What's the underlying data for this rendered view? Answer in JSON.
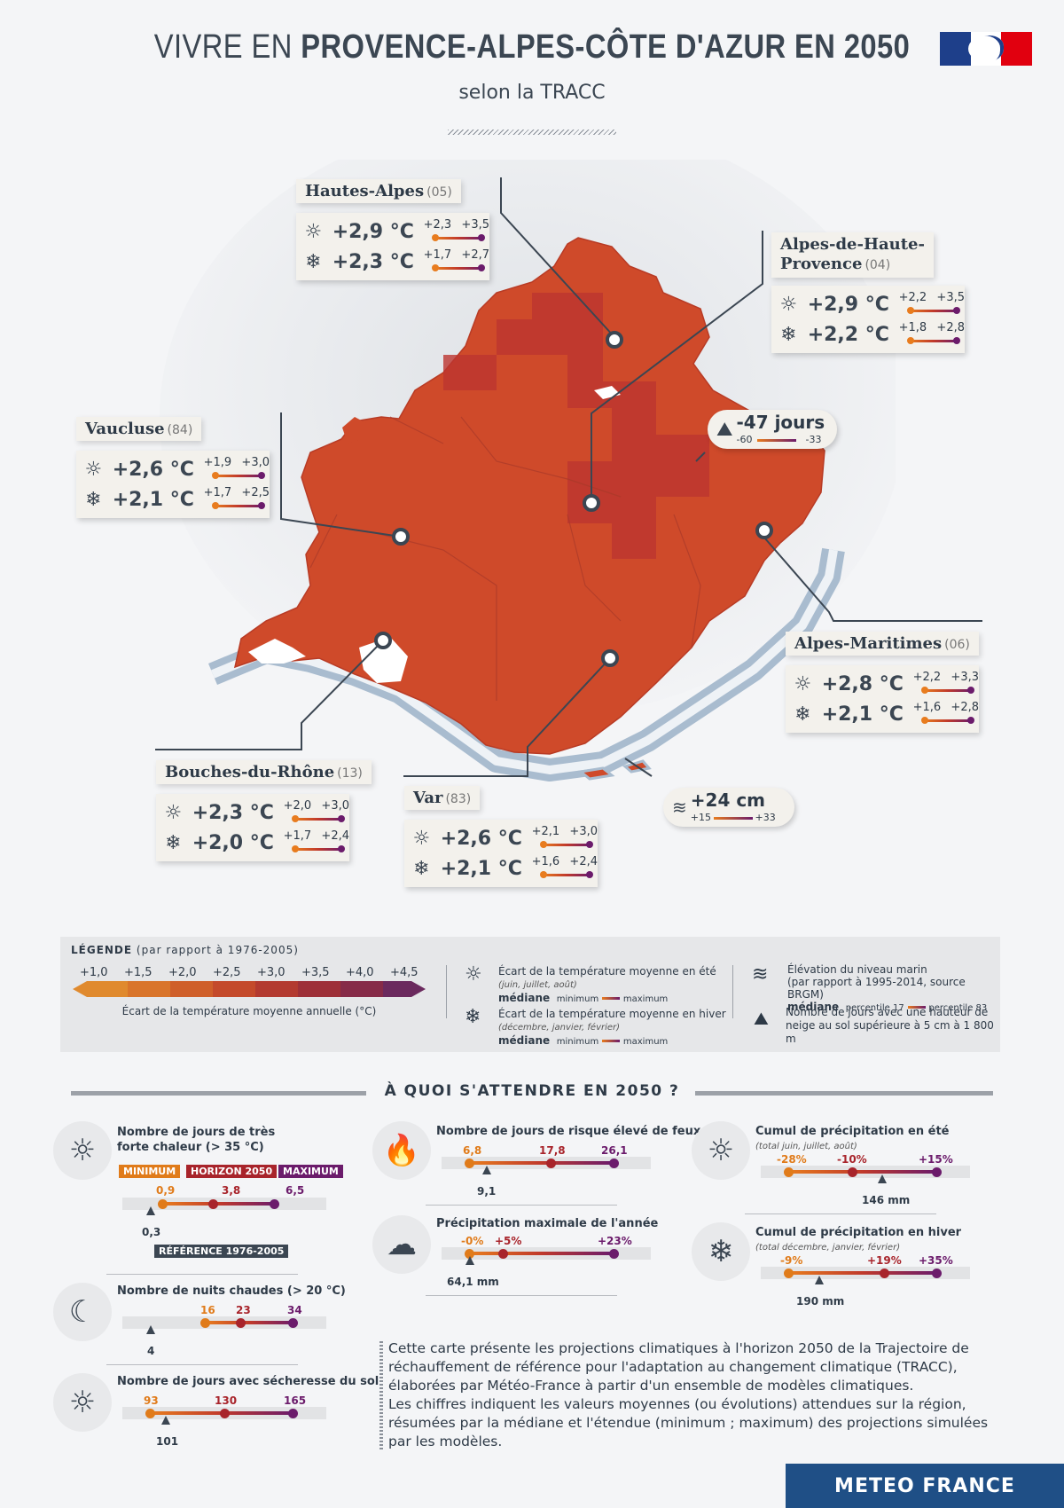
{
  "header": {
    "title_light": "VIVRE EN ",
    "title_bold": "PROVENCE-ALPES-CÔTE D'AZUR EN 2050",
    "subtitle": "selon la TRACC"
  },
  "regions": [
    {
      "name": "Hautes-Alpes",
      "code": "(05)",
      "summer": "+2,9 °C",
      "summer_min": "+2,3",
      "summer_max": "+3,5",
      "winter": "+2,3 °C",
      "winter_min": "+1,7",
      "winter_max": "+2,7"
    },
    {
      "name": "Alpes-de-Haute-Provence",
      "name1": "Alpes-de-Haute-",
      "name2": "Provence",
      "code": "(04)",
      "summer": "+2,9 °C",
      "summer_min": "+2,2",
      "summer_max": "+3,5",
      "winter": "+2,2 °C",
      "winter_min": "+1,8",
      "winter_max": "+2,8"
    },
    {
      "name": "Vaucluse",
      "code": "(84)",
      "summer": "+2,6 °C",
      "summer_min": "+1,9",
      "summer_max": "+3,0",
      "winter": "+2,1 °C",
      "winter_min": "+1,7",
      "winter_max": "+2,5"
    },
    {
      "name": "Alpes-Maritimes",
      "code": "(06)",
      "summer": "+2,8 °C",
      "summer_min": "+2,2",
      "summer_max": "+3,3",
      "winter": "+2,1 °C",
      "winter_min": "+1,6",
      "winter_max": "+2,8"
    },
    {
      "name": "Bouches-du-Rhône",
      "code": "(13)",
      "summer": "+2,3 °C",
      "summer_min": "+2,0",
      "summer_max": "+3,0",
      "winter": "+2,0 °C",
      "winter_min": "+1,7",
      "winter_max": "+2,4"
    },
    {
      "name": "Var",
      "code": "(83)",
      "summer": "+2,6 °C",
      "summer_min": "+2,1",
      "summer_max": "+3,0",
      "winter": "+2,1 °C",
      "winter_min": "+1,6",
      "winter_max": "+2,4"
    }
  ],
  "snow": {
    "value": "-47 jours",
    "min": "-60",
    "max": "-33"
  },
  "sea": {
    "value": "+24 cm",
    "min": "+15",
    "max": "+33"
  },
  "legend": {
    "title": "LÉGENDE",
    "title_note": "(par rapport à 1976-2005)",
    "scale_labels": [
      "+1,0",
      "+1,5",
      "+2,0",
      "+2,5",
      "+3,0",
      "+3,5",
      "+4,0",
      "+4,5"
    ],
    "scale_colors": [
      "#e08a2e",
      "#d9752b",
      "#cf5f2a",
      "#c44a2b",
      "#b33a30",
      "#9e3038",
      "#862b48",
      "#6b2a5e"
    ],
    "scale_caption": "Écart de la température moyenne annuelle (°C)",
    "summer_text": "Écart de la température moyenne en été",
    "summer_months": "(juin, juillet, août)",
    "winter_text": "Écart de la température moyenne en hiver",
    "winter_months": "(décembre, janvier, février)",
    "mediane": "médiane",
    "minimum": "minimum",
    "maximum": "maximum",
    "sea_text1": "Élévation du niveau marin",
    "sea_text2": "(par rapport à 1995-2014, source BRGM)",
    "percentile17": "percentile 17",
    "percentile83": "percentile 83",
    "snow_text1": "Nombre de jours avec une hauteur de",
    "snow_text2": "neige au sol supérieure à 5 cm à 1 800 m"
  },
  "section_title": "À QUOI S'ATTENDRE EN 2050 ?",
  "indicators": {
    "heat": {
      "title1": "Nombre de jours de très",
      "title2": "forte chaleur (> 35 °C)",
      "min": "0,9",
      "med": "3,8",
      "max": "6,5",
      "ref": "0,3",
      "tag_min": "MINIMUM",
      "tag_med": "HORIZON 2050",
      "tag_max": "MAXIMUM",
      "tag_ref": "RÉFÉRENCE 1976-2005"
    },
    "nights": {
      "title": "Nombre de nuits chaudes (> 20 °C)",
      "min": "16",
      "med": "23",
      "max": "34",
      "ref": "4"
    },
    "drought": {
      "title": "Nombre de jours avec sécheresse du sol",
      "min": "93",
      "med": "130",
      "max": "165",
      "ref": "101"
    },
    "fire": {
      "title": "Nombre de jours de risque élevé de feux",
      "min": "6,8",
      "med": "17,8",
      "max": "26,1",
      "ref": "9,1"
    },
    "precipmax": {
      "title": "Précipitation maximale de l'année",
      "min": "-0%",
      "med": "+5%",
      "max": "+23%",
      "ref": "64,1 mm"
    },
    "summer_precip": {
      "title": "Cumul de précipitation en été",
      "sub": "(total juin, juillet, août)",
      "min": "-28%",
      "med": "-10%",
      "max": "+15%",
      "ref": "146 mm"
    },
    "winter_precip": {
      "title": "Cumul de précipitation en hiver",
      "sub": "(total décembre, janvier, février)",
      "min": "-9%",
      "med": "+19%",
      "max": "+35%",
      "ref": "190 mm"
    }
  },
  "paragraph": [
    "Cette carte présente les projections climatiques à l'horizon 2050 de la Trajectoire de",
    "réchauffement de référence pour l'adaptation au changement climatique (TRACC),",
    "élaborées par Météo-France à partir d'un ensemble de modèles climatiques.",
    "Les chiffres indiquent les valeurs moyennes (ou évolutions) attendues sur la région,",
    "résumées par la médiane et l'étendue (minimum ; maximum) des projections simulées",
    "par les modèles."
  ],
  "brand": "METEO FRANCE",
  "colors": {
    "map_fill": "#cf4a2a",
    "map_hot": "#bb3530",
    "sea_outline": "#9fb3c7",
    "accent": "#1f4f86"
  }
}
